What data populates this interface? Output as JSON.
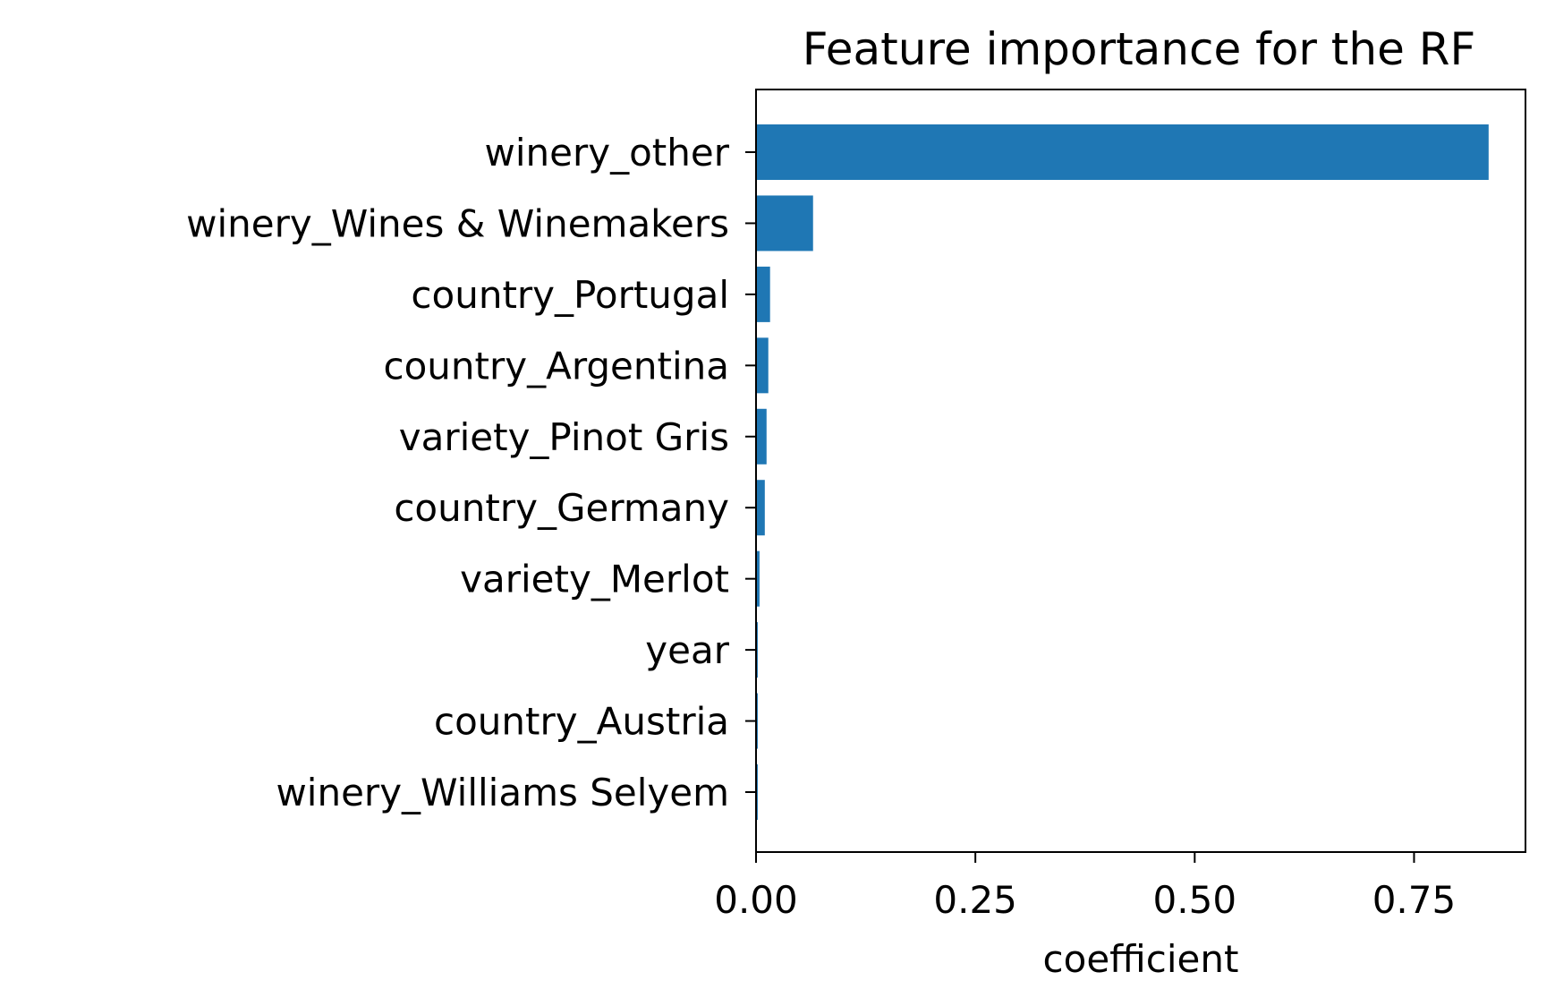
{
  "chart_data": {
    "type": "bar",
    "orientation": "horizontal",
    "title": "Feature importance for the RF",
    "xlabel": "coefficient",
    "ylabel": "",
    "categories": [
      "winery_other",
      "winery_Wines & Winemakers",
      "country_Portugal",
      "country_Argentina",
      "variety_Pinot Gris",
      "country_Germany",
      "variety_Merlot",
      "year",
      "country_Austria",
      "winery_Williams Selyem"
    ],
    "values": [
      0.835,
      0.065,
      0.016,
      0.014,
      0.012,
      0.01,
      0.004,
      0.002,
      0.002,
      0.002
    ],
    "xticks": [
      0.0,
      0.25,
      0.5,
      0.75
    ],
    "xtick_labels": [
      "0.00",
      "0.25",
      "0.50",
      "0.75"
    ],
    "xlim": [
      0,
      0.877
    ],
    "grid": false,
    "legend": "none",
    "bar_color": "#1f77b4"
  }
}
